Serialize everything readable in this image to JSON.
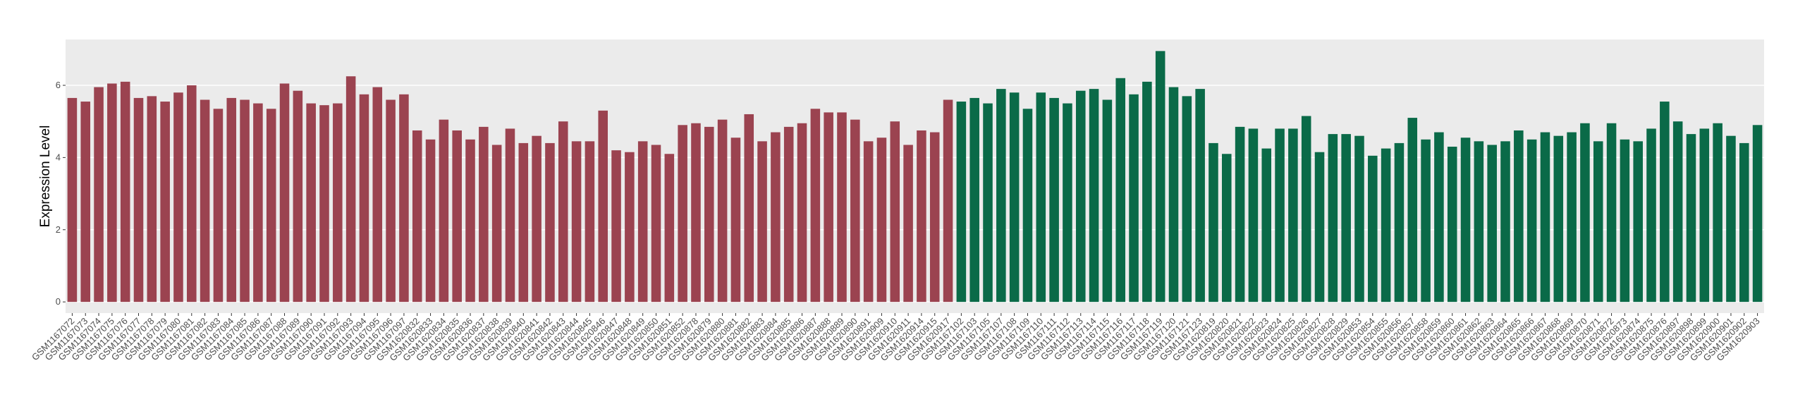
{
  "chart_data": {
    "type": "bar",
    "y_label": "Expression Level",
    "categories": [
      "GSM1167072",
      "GSM1167073",
      "GSM1167074",
      "GSM1167075",
      "GSM1167076",
      "GSM1167077",
      "GSM1167078",
      "GSM1167079",
      "GSM1167080",
      "GSM1167081",
      "GSM1167082",
      "GSM1167083",
      "GSM1167084",
      "GSM1167085",
      "GSM1167086",
      "GSM1167087",
      "GSM1167088",
      "GSM1167089",
      "GSM1167090",
      "GSM1167091",
      "GSM1167092",
      "GSM1167093",
      "GSM1167094",
      "GSM1167095",
      "GSM1167096",
      "GSM1167097",
      "GSM1620832",
      "GSM1620833",
      "GSM1620834",
      "GSM1620835",
      "GSM1620836",
      "GSM1620837",
      "GSM1620838",
      "GSM1620839",
      "GSM1620840",
      "GSM1620841",
      "GSM1620842",
      "GSM1620843",
      "GSM1620844",
      "GSM1620845",
      "GSM1620846",
      "GSM1620847",
      "GSM1620848",
      "GSM1620849",
      "GSM1620850",
      "GSM1620851",
      "GSM1620852",
      "GSM1620878",
      "GSM1620879",
      "GSM1620880",
      "GSM1620881",
      "GSM1620882",
      "GSM1620883",
      "GSM1620884",
      "GSM1620885",
      "GSM1620886",
      "GSM1620887",
      "GSM1620888",
      "GSM1620889",
      "GSM1620890",
      "GSM1620891",
      "GSM1620909",
      "GSM1620910",
      "GSM1620911",
      "GSM1620914",
      "GSM1620915",
      "GSM1620917",
      "GSM1167102",
      "GSM1167103",
      "GSM1167105",
      "GSM1167107",
      "GSM1167108",
      "GSM1167109",
      "GSM1167110",
      "GSM1167111",
      "GSM1167112",
      "GSM1167113",
      "GSM1167114",
      "GSM1167115",
      "GSM1167116",
      "GSM1167117",
      "GSM1167118",
      "GSM1167119",
      "GSM1167120",
      "GSM1167121",
      "GSM1167123",
      "GSM1620819",
      "GSM1620820",
      "GSM1620821",
      "GSM1620822",
      "GSM1620823",
      "GSM1620824",
      "GSM1620825",
      "GSM1620826",
      "GSM1620827",
      "GSM1620828",
      "GSM1620829",
      "GSM1620853",
      "GSM1620854",
      "GSM1620855",
      "GSM1620856",
      "GSM1620857",
      "GSM1620858",
      "GSM1620859",
      "GSM1620860",
      "GSM1620861",
      "GSM1620862",
      "GSM1620863",
      "GSM1620864",
      "GSM1620865",
      "GSM1620866",
      "GSM1620867",
      "GSM1620868",
      "GSM1620869",
      "GSM1620870",
      "GSM1620871",
      "GSM1620872",
      "GSM1620873",
      "GSM1620874",
      "GSM1620875",
      "GSM1620876",
      "GSM1620897",
      "GSM1620898",
      "GSM1620899",
      "GSM1620900",
      "GSM1620901",
      "GSM1620902",
      "GSM1620903"
    ],
    "values": [
      5.65,
      5.55,
      5.95,
      6.05,
      6.1,
      5.65,
      5.7,
      5.55,
      5.8,
      6.0,
      5.6,
      5.35,
      5.65,
      5.6,
      5.5,
      5.35,
      6.05,
      5.85,
      5.5,
      5.45,
      5.5,
      6.25,
      5.75,
      5.95,
      5.6,
      5.75,
      4.75,
      4.5,
      5.05,
      4.75,
      4.5,
      4.85,
      4.35,
      4.8,
      4.4,
      4.6,
      4.4,
      5.0,
      4.45,
      4.45,
      5.3,
      4.2,
      4.15,
      4.45,
      4.35,
      4.1,
      4.9,
      4.95,
      4.85,
      5.05,
      4.55,
      5.2,
      4.45,
      4.7,
      4.85,
      4.95,
      5.35,
      5.25,
      5.25,
      5.05,
      4.45,
      4.55,
      5.0,
      4.35,
      4.75,
      4.7,
      5.6,
      5.55,
      5.65,
      5.5,
      5.9,
      5.8,
      5.35,
      5.8,
      5.65,
      5.5,
      5.85,
      5.9,
      5.6,
      6.2,
      5.75,
      6.1,
      6.95,
      5.95,
      5.7,
      5.9,
      4.4,
      4.1,
      4.85,
      4.8,
      4.25,
      4.8,
      4.8,
      5.15,
      4.15,
      4.65,
      4.65,
      4.6,
      4.05,
      4.25,
      4.4,
      5.1,
      4.5,
      4.7,
      4.3,
      4.55,
      4.45,
      4.35,
      4.45,
      4.75,
      4.5,
      4.7,
      4.6,
      4.7,
      4.95,
      4.45,
      4.95,
      4.5,
      4.45,
      4.8,
      5.55,
      5.0,
      4.65,
      4.8,
      4.95,
      4.6,
      4.4,
      4.9
    ],
    "colors": [
      "#9b4350",
      "#9b4350",
      "#9b4350",
      "#9b4350",
      "#9b4350",
      "#9b4350",
      "#9b4350",
      "#9b4350",
      "#9b4350",
      "#9b4350",
      "#9b4350",
      "#9b4350",
      "#9b4350",
      "#9b4350",
      "#9b4350",
      "#9b4350",
      "#9b4350",
      "#9b4350",
      "#9b4350",
      "#9b4350",
      "#9b4350",
      "#9b4350",
      "#9b4350",
      "#9b4350",
      "#9b4350",
      "#9b4350",
      "#9b4350",
      "#9b4350",
      "#9b4350",
      "#9b4350",
      "#9b4350",
      "#9b4350",
      "#9b4350",
      "#9b4350",
      "#9b4350",
      "#9b4350",
      "#9b4350",
      "#9b4350",
      "#9b4350",
      "#9b4350",
      "#9b4350",
      "#9b4350",
      "#9b4350",
      "#9b4350",
      "#9b4350",
      "#9b4350",
      "#9b4350",
      "#9b4350",
      "#9b4350",
      "#9b4350",
      "#9b4350",
      "#9b4350",
      "#9b4350",
      "#9b4350",
      "#9b4350",
      "#9b4350",
      "#9b4350",
      "#9b4350",
      "#9b4350",
      "#9b4350",
      "#9b4350",
      "#9b4350",
      "#9b4350",
      "#9b4350",
      "#9b4350",
      "#9b4350",
      "#9b4350",
      "#0a6a48",
      "#0a6a48",
      "#0a6a48",
      "#0a6a48",
      "#0a6a48",
      "#0a6a48",
      "#0a6a48",
      "#0a6a48",
      "#0a6a48",
      "#0a6a48",
      "#0a6a48",
      "#0a6a48",
      "#0a6a48",
      "#0a6a48",
      "#0a6a48",
      "#0a6a48",
      "#0a6a48",
      "#0a6a48",
      "#0a6a48",
      "#0a6a48",
      "#0a6a48",
      "#0a6a48",
      "#0a6a48",
      "#0a6a48",
      "#0a6a48",
      "#0a6a48",
      "#0a6a48",
      "#0a6a48",
      "#0a6a48",
      "#0a6a48",
      "#0a6a48",
      "#0a6a48",
      "#0a6a48",
      "#0a6a48",
      "#0a6a48",
      "#0a6a48",
      "#0a6a48",
      "#0a6a48",
      "#0a6a48",
      "#0a6a48",
      "#0a6a48",
      "#0a6a48",
      "#0a6a48",
      "#0a6a48",
      "#0a6a48",
      "#0a6a48",
      "#0a6a48",
      "#0a6a48",
      "#0a6a48",
      "#0a6a48",
      "#0a6a48",
      "#0a6a48",
      "#0a6a48",
      "#0a6a48",
      "#0a6a48",
      "#0a6a48",
      "#0a6a48",
      "#0a6a48",
      "#0a6a48",
      "#0a6a48",
      "#0a6a48"
    ],
    "ylim": [
      -0.31,
      7.27
    ],
    "yticks": [
      0,
      2,
      4,
      6
    ],
    "grid": true
  }
}
